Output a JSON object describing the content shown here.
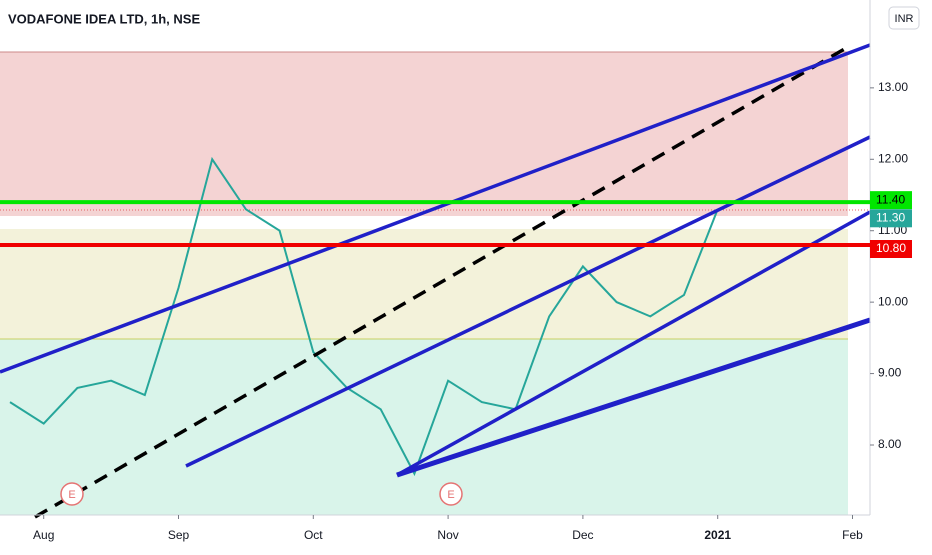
{
  "chart_data": {
    "type": "line",
    "title": "VODAFONE IDEA LTD, 1h, NSE",
    "currency": "INR",
    "categories": [
      null,
      "Aug",
      null,
      null,
      null,
      "Sep",
      null,
      null,
      null,
      "Oct",
      null,
      null,
      null,
      "Nov",
      null,
      null,
      null,
      "Dec",
      null,
      null,
      null,
      "2021",
      null,
      null,
      null,
      "Feb"
    ],
    "series": [
      {
        "color": "#26a69a",
        "values": [
          8.6,
          8.3,
          8.8,
          8.9,
          8.7,
          10.2,
          12.0,
          11.3,
          11.0,
          9.3,
          8.8,
          8.5,
          7.6,
          8.9,
          8.6,
          8.5,
          9.8,
          10.5,
          10.0,
          9.8,
          10.1,
          11.3,
          null,
          null,
          null,
          null
        ]
      }
    ],
    "ylim": [
      7.02,
      14.23
    ],
    "yticks": [
      {
        "value": 8,
        "label": "8.00"
      },
      {
        "value": 9,
        "label": "9.00"
      },
      {
        "value": 10,
        "label": "10.00"
      },
      {
        "value": 11,
        "label": "11.00"
      },
      {
        "value": 12,
        "label": "12.00"
      },
      {
        "value": 13,
        "label": "13.00"
      }
    ],
    "levels": [
      {
        "value": 11.4,
        "label": "11.40",
        "color": "#00e600"
      },
      {
        "value": 11.3,
        "label": "11.30",
        "color": "#26a69a"
      },
      {
        "value": 10.8,
        "label": "10.80",
        "color": "#f00000"
      }
    ],
    "annotations": [
      "E",
      "E"
    ]
  }
}
